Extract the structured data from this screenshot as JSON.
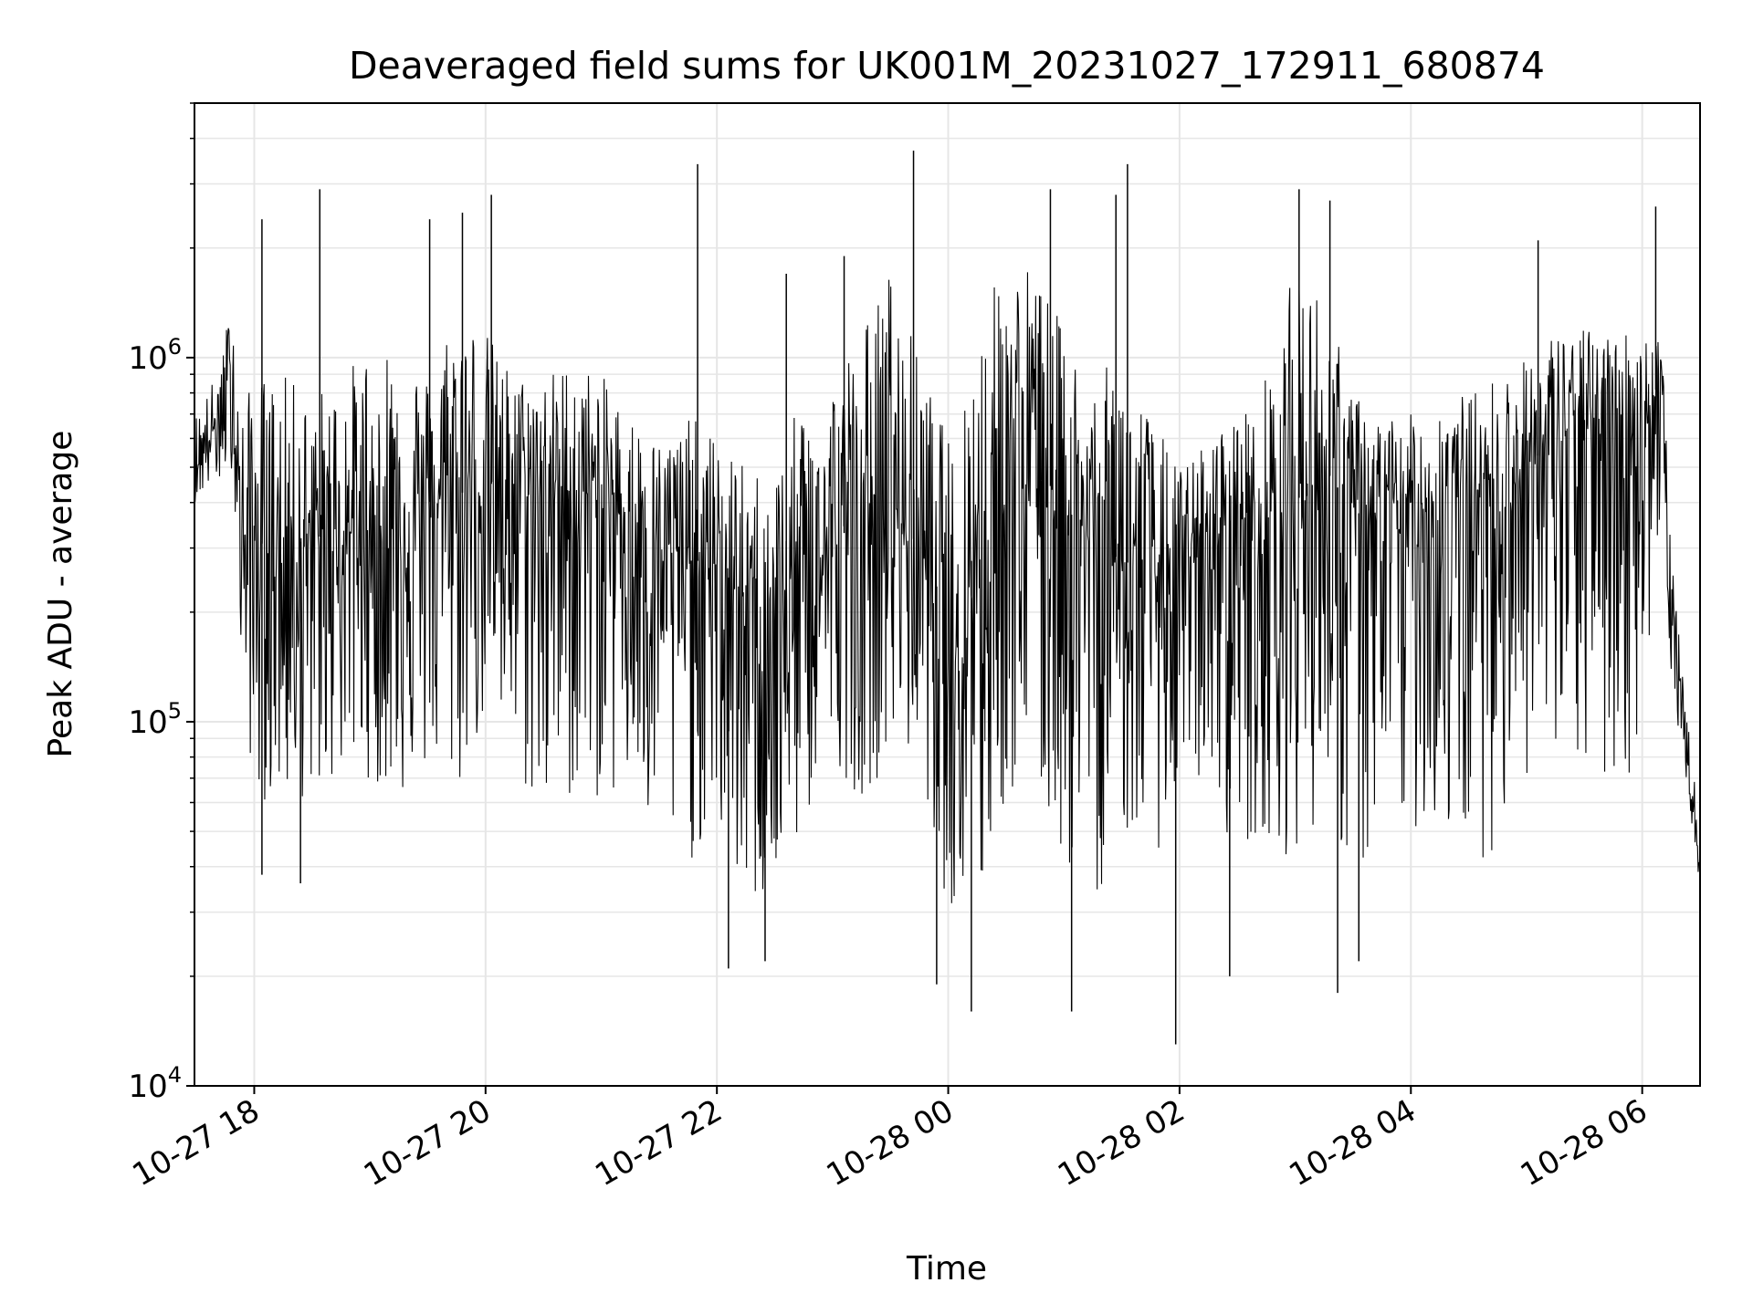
{
  "chart_data": {
    "type": "line",
    "title": "Deaveraged field sums for UK001M_20231027_172911_680874",
    "xlabel": "Time",
    "ylabel": "Peak ADU - average",
    "yscale": "log",
    "ylim": [
      10000,
      5000000
    ],
    "xlim": [
      "2023-10-27 17:29",
      "2023-10-28 06:30"
    ],
    "grid": true,
    "line_color": "#000000",
    "grid_color": "#e6e6e6",
    "x_ticks": [
      {
        "value": "2023-10-27 18:00",
        "label": "10-27 18"
      },
      {
        "value": "2023-10-27 20:00",
        "label": "10-27 20"
      },
      {
        "value": "2023-10-27 22:00",
        "label": "10-27 22"
      },
      {
        "value": "2023-10-28 00:00",
        "label": "10-28 00"
      },
      {
        "value": "2023-10-28 02:00",
        "label": "10-28 02"
      },
      {
        "value": "2023-10-28 04:00",
        "label": "10-28 04"
      },
      {
        "value": "2023-10-28 06:00",
        "label": "10-28 06"
      }
    ],
    "y_ticks": [
      {
        "value": 10000,
        "base": "10",
        "exp": "4"
      },
      {
        "value": 100000,
        "base": "10",
        "exp": "5"
      },
      {
        "value": 1000000,
        "base": "10",
        "exp": "6"
      }
    ],
    "series": [
      {
        "x": [
          "2023-10-27 17:29",
          "2023-10-27 17:40",
          "2023-10-27 17:49",
          "2023-10-27 17:53",
          "2023-10-27 18:00",
          "2023-10-27 18:15",
          "2023-10-27 18:30",
          "2023-10-27 18:45",
          "2023-10-27 19:00",
          "2023-10-27 19:15",
          "2023-10-27 19:30",
          "2023-10-27 19:45",
          "2023-10-27 20:00",
          "2023-10-27 20:15",
          "2023-10-27 20:30",
          "2023-10-27 20:45",
          "2023-10-27 21:00",
          "2023-10-27 21:15",
          "2023-10-27 21:30",
          "2023-10-27 21:45",
          "2023-10-27 22:00",
          "2023-10-27 22:15",
          "2023-10-27 22:30",
          "2023-10-27 22:45",
          "2023-10-27 23:00",
          "2023-10-27 23:15",
          "2023-10-27 23:30",
          "2023-10-27 23:45",
          "2023-10-28 00:00",
          "2023-10-28 00:15",
          "2023-10-28 00:30",
          "2023-10-28 00:45",
          "2023-10-28 01:00",
          "2023-10-28 01:15",
          "2023-10-28 01:30",
          "2023-10-28 01:45",
          "2023-10-28 02:00",
          "2023-10-28 02:15",
          "2023-10-28 02:30",
          "2023-10-28 02:45",
          "2023-10-28 03:00",
          "2023-10-28 03:15",
          "2023-10-28 03:30",
          "2023-10-28 03:45",
          "2023-10-28 04:00",
          "2023-10-28 04:15",
          "2023-10-28 04:30",
          "2023-10-28 04:45",
          "2023-10-28 05:00",
          "2023-10-28 05:15",
          "2023-10-28 05:30",
          "2023-10-28 05:45",
          "2023-10-28 06:00",
          "2023-10-28 06:10",
          "2023-10-28 06:15",
          "2023-10-28 06:20",
          "2023-10-28 06:30"
        ],
        "median": [
          500000,
          650000,
          900000,
          300000,
          320000,
          300000,
          320000,
          330000,
          340000,
          360000,
          400000,
          420000,
          450000,
          450000,
          450000,
          430000,
          420000,
          380000,
          300000,
          280000,
          270000,
          220000,
          180000,
          230000,
          300000,
          380000,
          400000,
          300000,
          200000,
          300000,
          450000,
          500000,
          400000,
          300000,
          280000,
          250000,
          250000,
          300000,
          380000,
          350000,
          400000,
          500000,
          380000,
          350000,
          400000,
          380000,
          420000,
          450000,
          500000,
          600000,
          650000,
          700000,
          650000,
          900000,
          200000,
          110000,
          40000
        ],
        "high": [
          700000,
          900000,
          1500000,
          700000,
          900000,
          900000,
          800000,
          900000,
          1100000,
          1200000,
          900000,
          1500000,
          1200000,
          900000,
          900000,
          1000000,
          900000,
          700000,
          600000,
          700000,
          600000,
          500000,
          500000,
          800000,
          900000,
          1200000,
          1800000,
          1000000,
          600000,
          1200000,
          2000000,
          1800000,
          1200000,
          900000,
          1000000,
          700000,
          500000,
          600000,
          700000,
          900000,
          1800000,
          1500000,
          800000,
          700000,
          700000,
          800000,
          800000,
          900000,
          1000000,
          1200000,
          1200000,
          1200000,
          1200000,
          1200000,
          300000,
          150000,
          50000
        ],
        "low": [
          400000,
          450000,
          500000,
          150000,
          60000,
          60000,
          60000,
          70000,
          70000,
          60000,
          70000,
          60000,
          100000,
          70000,
          50000,
          60000,
          60000,
          60000,
          40000,
          40000,
          50000,
          30000,
          30000,
          50000,
          80000,
          60000,
          80000,
          80000,
          30000,
          25000,
          60000,
          60000,
          40000,
          30000,
          50000,
          40000,
          60000,
          70000,
          40000,
          50000,
          40000,
          60000,
          35000,
          40000,
          50000,
          50000,
          40000,
          45000,
          70000,
          60000,
          70000,
          60000,
          80000,
          400000,
          120000,
          90000,
          35000
        ]
      }
    ],
    "spikes": [
      {
        "x": "2023-10-27 18:04",
        "y": 2400000
      },
      {
        "x": "2023-10-27 18:34",
        "y": 2900000
      },
      {
        "x": "2023-10-27 19:31",
        "y": 2400000
      },
      {
        "x": "2023-10-27 19:48",
        "y": 2500000
      },
      {
        "x": "2023-10-27 20:03",
        "y": 2800000
      },
      {
        "x": "2023-10-27 21:50",
        "y": 3400000
      },
      {
        "x": "2023-10-27 22:36",
        "y": 1700000
      },
      {
        "x": "2023-10-27 23:06",
        "y": 1900000
      },
      {
        "x": "2023-10-27 23:42",
        "y": 3700000
      },
      {
        "x": "2023-10-28 00:53",
        "y": 2900000
      },
      {
        "x": "2023-10-28 01:27",
        "y": 2800000
      },
      {
        "x": "2023-10-28 01:33",
        "y": 3400000
      },
      {
        "x": "2023-10-28 03:02",
        "y": 2900000
      },
      {
        "x": "2023-10-28 03:18",
        "y": 2700000
      },
      {
        "x": "2023-10-28 05:06",
        "y": 2100000
      },
      {
        "x": "2023-10-28 06:07",
        "y": 2600000
      }
    ],
    "dips": [
      {
        "x": "2023-10-27 18:04",
        "y": 38000
      },
      {
        "x": "2023-10-27 18:24",
        "y": 36000
      },
      {
        "x": "2023-10-27 22:06",
        "y": 21000
      },
      {
        "x": "2023-10-27 22:25",
        "y": 22000
      },
      {
        "x": "2023-10-27 23:54",
        "y": 19000
      },
      {
        "x": "2023-10-28 00:12",
        "y": 16000
      },
      {
        "x": "2023-10-28 01:04",
        "y": 16000
      },
      {
        "x": "2023-10-28 01:58",
        "y": 13000
      },
      {
        "x": "2023-10-28 02:26",
        "y": 20000
      },
      {
        "x": "2023-10-28 03:22",
        "y": 18000
      },
      {
        "x": "2023-10-28 03:33",
        "y": 22000
      }
    ]
  }
}
